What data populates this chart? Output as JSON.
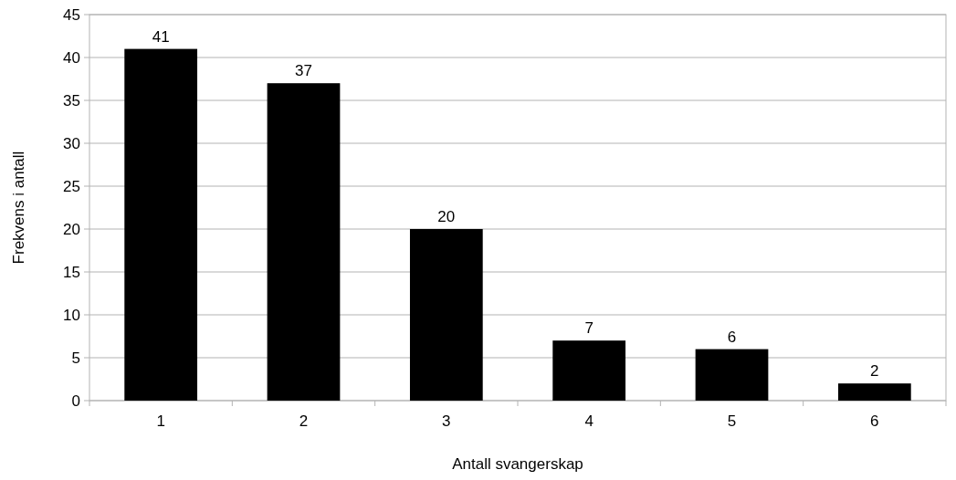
{
  "chart_data": {
    "type": "bar",
    "xlabel": "Antall svangerskap",
    "ylabel": "Frekvens i antall",
    "categories": [
      "1",
      "2",
      "3",
      "4",
      "5",
      "6"
    ],
    "values": [
      41,
      37,
      20,
      7,
      6,
      2
    ],
    "color": "#000000",
    "ylim": [
      0,
      45
    ],
    "yticks": [
      0,
      5,
      10,
      15,
      20,
      25,
      30,
      35,
      40,
      45
    ],
    "grid": "y",
    "data_labels": true
  }
}
